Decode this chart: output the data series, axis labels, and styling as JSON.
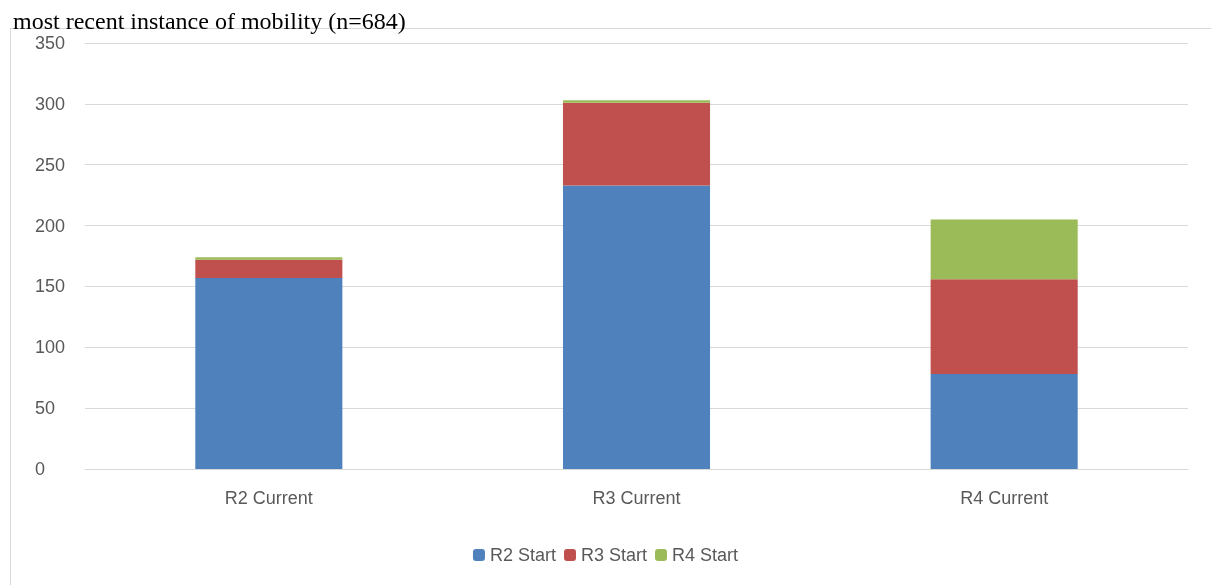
{
  "chart_data": {
    "type": "bar",
    "title": "most recent instance of mobility (n=684)",
    "categories": [
      "R2 Current",
      "R3 Current",
      "R4 Current"
    ],
    "stacked": true,
    "series": [
      {
        "name": "R2 Start",
        "color": "#4f81bd",
        "values": [
          157,
          233,
          78
        ]
      },
      {
        "name": "R3 Start",
        "color": "#c0504d",
        "values": [
          15,
          68,
          78
        ]
      },
      {
        "name": "R4 Start",
        "color": "#9bbb59",
        "values": [
          2,
          2,
          49
        ]
      }
    ],
    "ylim": [
      0,
      350
    ],
    "yticks": [
      0,
      50,
      100,
      150,
      200,
      250,
      300,
      350
    ],
    "grid": "y",
    "legend": "bottom"
  }
}
